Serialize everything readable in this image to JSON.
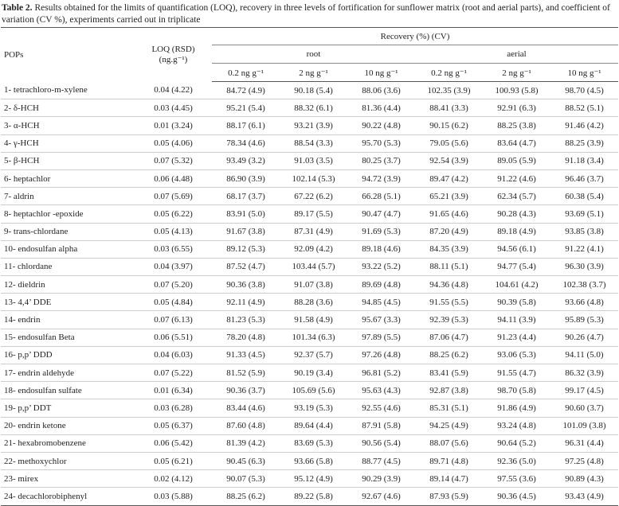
{
  "caption": {
    "label": "Table 2.",
    "text": "Results obtained for the limits of quantification (LOQ), recovery in three levels of fortification for sunflower matrix (root and aerial parts), and coefficient of variation (CV %), experiments carried out in triplicate"
  },
  "header": {
    "pops": "POPs",
    "loq": "LOQ (RSD)",
    "loq_unit": "(ng.g⁻¹)",
    "recovery": "Recovery (%) (CV)",
    "root": "root",
    "aerial": "aerial",
    "levels": [
      "0.2 ng g⁻¹",
      "2 ng g⁻¹",
      "10 ng g⁻¹",
      "0.2 ng g⁻¹",
      "2 ng g⁻¹",
      "10 ng g⁻¹"
    ]
  },
  "rows": [
    [
      "1- tetrachloro-m-xylene",
      "0.04 (4.22)",
      "84.72 (4.9)",
      "90.18 (5.4)",
      "88.06 (3.6)",
      "102.35 (3.9)",
      "100.93 (5.8)",
      "98.70 (4.5)"
    ],
    [
      "2- δ-HCH",
      "0.03 (4.45)",
      "95.21 (5.4)",
      "88.32 (6.1)",
      "81.36 (4.4)",
      "88.41 (3.3)",
      "92.91 (6.3)",
      "88.52 (5.1)"
    ],
    [
      "3- α-HCH",
      "0.01 (3.24)",
      "88.17 (6.1)",
      "93.21 (3.9)",
      "90.22 (4.8)",
      "90.15 (6.2)",
      "88.25 (3.8)",
      "91.46 (4.2)"
    ],
    [
      "4- γ-HCH",
      "0.05 (4.06)",
      "78.34 (4.6)",
      "88.54 (3.3)",
      "95.70 (5.3)",
      "79.05 (5.6)",
      "83.64 (4.7)",
      "88.25 (3.9)"
    ],
    [
      "5- β-HCH",
      "0.07 (5.32)",
      "93.49 (3.2)",
      "91.03 (3.5)",
      "80.25 (3.7)",
      "92.54 (3.9)",
      "89.05 (5.9)",
      "91.18 (3.4)"
    ],
    [
      "6- heptachlor",
      "0.06 (4.48)",
      "86.90 (3.9)",
      "102.14 (5.3)",
      "94.72 (3.9)",
      "89.47 (4.2)",
      "91.22 (4.6)",
      "96.46 (3.7)"
    ],
    [
      "7- aldrin",
      "0.07 (5.69)",
      "68.17 (3.7)",
      "67.22 (6.2)",
      "66.28 (5.1)",
      "65.21 (3.9)",
      "62.34 (5.7)",
      "60.38 (5.4)"
    ],
    [
      "8- heptachlor -epoxide",
      "0.05 (6.22)",
      "83.91 (5.0)",
      "89.17 (5.5)",
      "90.47 (4.7)",
      "91.65 (4.6)",
      "90.28 (4.3)",
      "93.69 (5.1)"
    ],
    [
      "9- trans-chlordane",
      "0.05 (4.13)",
      "91.67 (3.8)",
      "87.31 (4.9)",
      "91.69 (5.3)",
      "87.20 (4.9)",
      "89.18 (4.9)",
      "93.85 (3.8)"
    ],
    [
      "10- endosulfan alpha",
      "0.03 (6.55)",
      "89.12 (5.3)",
      "92.09 (4.2)",
      "89.18 (4.6)",
      "84.35 (3.9)",
      "94.56 (6.1)",
      "91.22 (4.1)"
    ],
    [
      "11- chlordane",
      "0.04 (3.97)",
      "87.52 (4.7)",
      "103.44 (5.7)",
      "93.22 (5.2)",
      "88.11 (5.1)",
      "94.77 (5.4)",
      "96.30 (3.9)"
    ],
    [
      "12- dieldrin",
      "0.07 (5.20)",
      "90.36 (3.8)",
      "91.07 (3.8)",
      "89.69 (4.8)",
      "94.36 (4.8)",
      "104.61 (4.2)",
      "102.38 (3.7)"
    ],
    [
      "13- 4,4’ DDE",
      "0.05 (4.84)",
      "92.11 (4.9)",
      "88.28 (3.6)",
      "94.85 (4.5)",
      "91.55 (5.5)",
      "90.39 (5.8)",
      "93.66 (4.8)"
    ],
    [
      "14- endrin",
      "0.07 (6.13)",
      "81.23 (5.3)",
      "91.58 (4.9)",
      "95.67 (3.3)",
      "92.39 (5.3)",
      "94.11 (3.9)",
      "95.89 (5.3)"
    ],
    [
      "15- endosulfan Beta",
      "0.06 (5.51)",
      "78.20 (4.8)",
      "101.34 (6.3)",
      "97.89 (5.5)",
      "87.06 (4.7)",
      "91.23 (4.4)",
      "90.26 (4.7)"
    ],
    [
      "16- p,p’ DDD",
      "0.04 (6.03)",
      "91.33 (4.5)",
      "92.37 (5.7)",
      "97.26 (4.8)",
      "88.25 (6.2)",
      "93.06 (5.3)",
      "94.11 (5.0)"
    ],
    [
      "17- endrin aldehyde",
      "0.07 (5.22)",
      "81.52 (5.9)",
      "90.19 (3.4)",
      "96.81 (5.2)",
      "83.41 (5.9)",
      "91.55 (4.7)",
      "86.32 (3.9)"
    ],
    [
      "18- endosulfan sulfate",
      "0.01 (6.34)",
      "90.36 (3.7)",
      "105.69 (5.6)",
      "95.63 (4.3)",
      "92.87 (3.8)",
      "98.70 (5.8)",
      "99.17 (4.5)"
    ],
    [
      "19- p,p’ DDT",
      "0.03 (6.28)",
      "83.44 (4.6)",
      "93.19 (5.3)",
      "92.55 (4.6)",
      "85.31 (5.1)",
      "91.86 (4.9)",
      "90.60 (3.7)"
    ],
    [
      "20- endrin ketone",
      "0.05 (6.37)",
      "87.60 (4.8)",
      "89.64 (4.4)",
      "87.91 (5.8)",
      "94.25 (4.9)",
      "93.24 (4.8)",
      "101.09 (3.8)"
    ],
    [
      "21- hexabromobenzene",
      "0.06 (5.42)",
      "81.39 (4.2)",
      "83.69 (5.3)",
      "90.56 (5.4)",
      "88.07 (5.6)",
      "90.64 (5.2)",
      "96.31 (4.4)"
    ],
    [
      "22- methoxychlor",
      "0.05 (6.21)",
      "90.45 (6.3)",
      "93.66 (5.8)",
      "88.77 (4.5)",
      "89.71 (4.8)",
      "92.36 (5.0)",
      "97.25 (4.8)"
    ],
    [
      "23- mirex",
      "0.02 (4.12)",
      "90.07 (5.3)",
      "95.12 (4.9)",
      "90.29 (3.9)",
      "89.14 (4.7)",
      "97.55 (3.6)",
      "90.89 (4.3)"
    ],
    [
      "24- decachlorobiphenyl",
      "0.03 (5.88)",
      "88.25 (6.2)",
      "89.22 (5.8)",
      "92.67 (4.6)",
      "87.93 (5.9)",
      "90.36 (4.5)",
      "93.43 (4.9)"
    ]
  ]
}
